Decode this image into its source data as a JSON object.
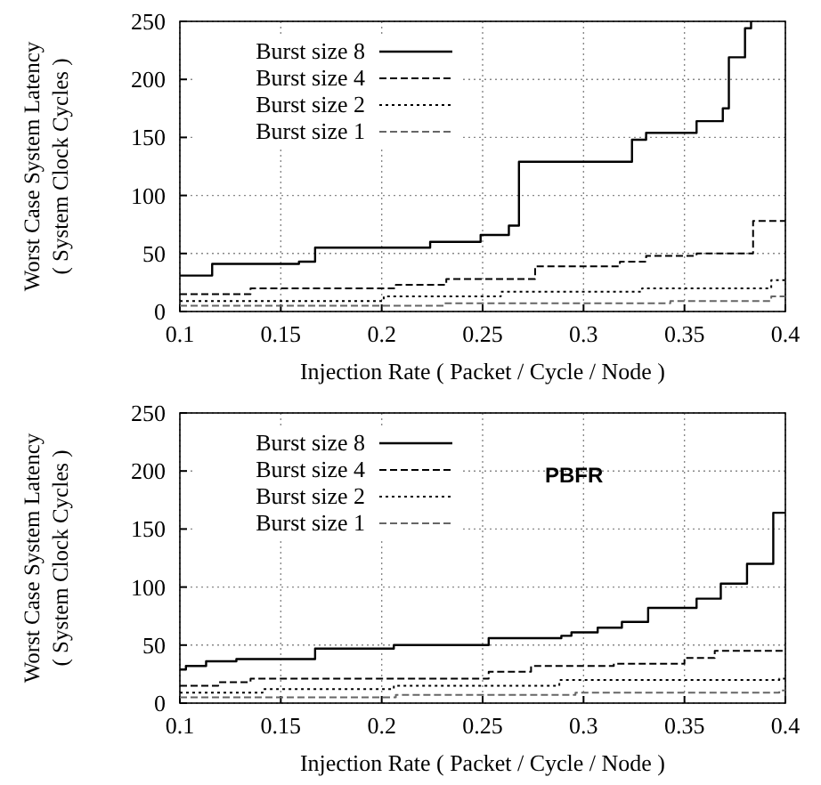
{
  "chart_data": [
    {
      "type": "step",
      "xlabel": "Injection Rate ( Packet / Cycle / Node )",
      "ylabel": "Worst Case System Latency\n( System Clock Cycles )",
      "xlim": [
        0.1,
        0.4
      ],
      "ylim": [
        0,
        250
      ],
      "xticks": [
        0.1,
        0.15,
        0.2,
        0.25,
        0.3,
        0.35,
        0.4
      ],
      "yticks": [
        0,
        50,
        100,
        150,
        200,
        250
      ],
      "grid": true,
      "legend": "top left",
      "series": [
        {
          "name": "Burst size 8",
          "color": "#000000",
          "line_style": "solid",
          "x": [
            0.1,
            0.116,
            0.159,
            0.167,
            0.224,
            0.249,
            0.263,
            0.268,
            0.324,
            0.331,
            0.356,
            0.369,
            0.372,
            0.38,
            0.383
          ],
          "values": [
            31,
            41,
            43,
            55,
            60,
            66,
            74,
            129,
            148,
            154,
            164,
            175,
            219,
            244,
            250
          ]
        },
        {
          "name": "Burst size 4",
          "color": "#000000",
          "line_style": "dashed",
          "x": [
            0.1,
            0.135,
            0.207,
            0.232,
            0.276,
            0.318,
            0.331,
            0.356,
            0.384,
            0.4
          ],
          "values": [
            15,
            20,
            23,
            28,
            39,
            43,
            48,
            50,
            78,
            78
          ]
        },
        {
          "name": "Burst size 2",
          "color": "#000000",
          "line_style": "dotted",
          "x": [
            0.1,
            0.201,
            0.259,
            0.329,
            0.393,
            0.4
          ],
          "values": [
            9,
            13,
            17,
            20,
            27,
            27
          ]
        },
        {
          "name": "Burst size 1",
          "color": "#666666",
          "line_style": "dashed",
          "x": [
            0.1,
            0.231,
            0.343,
            0.393,
            0.4
          ],
          "values": [
            5,
            7,
            9,
            13,
            13
          ]
        }
      ]
    },
    {
      "type": "step",
      "xlabel": "Injection Rate ( Packet / Cycle / Node )",
      "ylabel": "Worst Case System Latency\n( System Clock Cycles )",
      "xlim": [
        0.1,
        0.4
      ],
      "ylim": [
        0,
        250
      ],
      "xticks": [
        0.1,
        0.15,
        0.2,
        0.25,
        0.3,
        0.35,
        0.4
      ],
      "yticks": [
        0,
        50,
        100,
        150,
        200,
        250
      ],
      "grid": true,
      "legend": "top left",
      "annotations": [
        "PBFR"
      ],
      "series": [
        {
          "name": "Burst size 8",
          "color": "#000000",
          "line_style": "solid",
          "x": [
            0.1,
            0.103,
            0.113,
            0.128,
            0.167,
            0.206,
            0.253,
            0.289,
            0.294,
            0.307,
            0.319,
            0.332,
            0.356,
            0.368,
            0.381,
            0.394,
            0.4
          ],
          "values": [
            29,
            32,
            36,
            38,
            47,
            50,
            56,
            58,
            61,
            65,
            70,
            82,
            90,
            103,
            120,
            164,
            164
          ]
        },
        {
          "name": "Burst size 4",
          "color": "#000000",
          "line_style": "dashed",
          "x": [
            0.1,
            0.119,
            0.135,
            0.253,
            0.274,
            0.315,
            0.35,
            0.365,
            0.4
          ],
          "values": [
            15,
            18,
            21,
            27,
            32,
            34,
            39,
            45,
            45
          ]
        },
        {
          "name": "Burst size 2",
          "color": "#000000",
          "line_style": "dotted",
          "x": [
            0.1,
            0.141,
            0.206,
            0.288,
            0.397,
            0.4
          ],
          "values": [
            9,
            12,
            15,
            20,
            21,
            21
          ]
        },
        {
          "name": "Burst size 1",
          "color": "#666666",
          "line_style": "dashed",
          "x": [
            0.1,
            0.207,
            0.296,
            0.397,
            0.4
          ],
          "values": [
            5,
            7,
            9,
            11,
            11
          ]
        }
      ]
    }
  ]
}
